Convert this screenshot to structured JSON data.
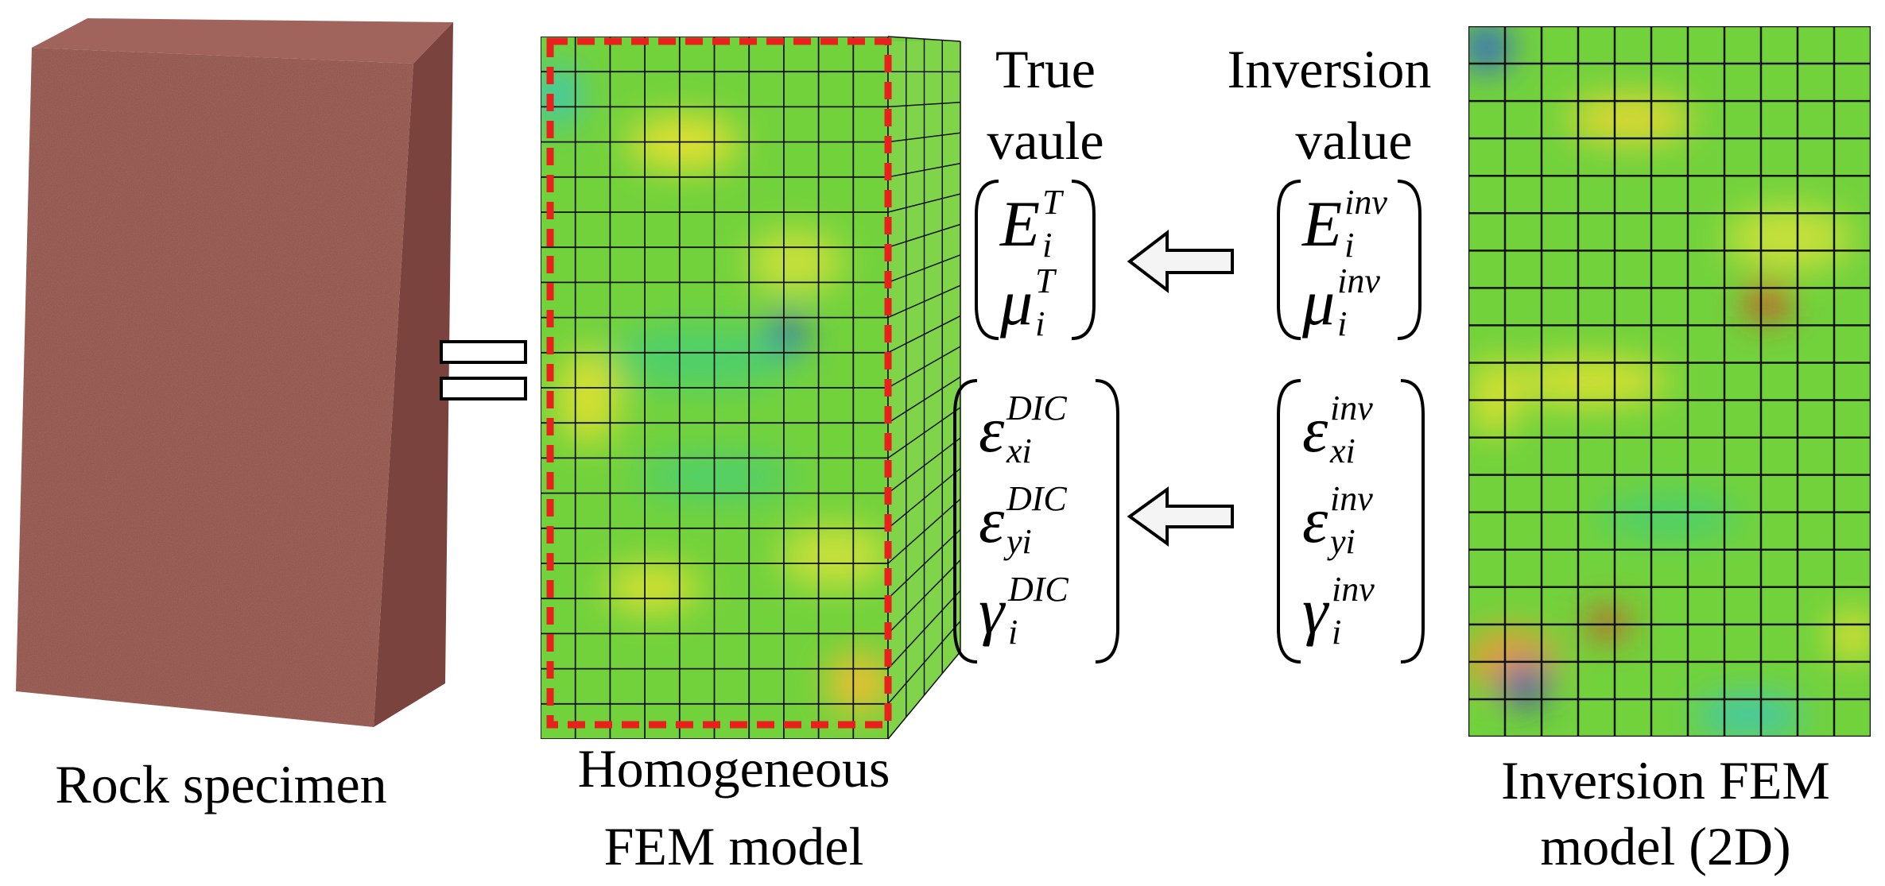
{
  "labels": {
    "rock_specimen": "Rock specimen",
    "homogeneous_model": [
      "Homogeneous",
      "FEM model"
    ],
    "true_value": [
      "True",
      "vaule"
    ],
    "inversion_value": [
      "Inversion",
      "value"
    ],
    "inversion_model": [
      "Inversion FEM",
      "model (2D)"
    ]
  },
  "true_params": [
    {
      "base": "E",
      "sub": "i",
      "sup": "T"
    },
    {
      "base": "μ",
      "sub": "i",
      "sup": "T"
    }
  ],
  "inversion_params": [
    {
      "base": "E",
      "sub": "i",
      "sup": "inv"
    },
    {
      "base": "μ",
      "sub": "i",
      "sup": "inv"
    }
  ],
  "dic_strains": [
    {
      "base": "ε",
      "sub": "xi",
      "sup": "DIC"
    },
    {
      "base": "ε",
      "sub": "yi",
      "sup": "DIC"
    },
    {
      "base": "γ",
      "sub": "i",
      "sup": "DIC"
    }
  ],
  "inversion_strains": [
    {
      "base": "ε",
      "sub": "xi",
      "sup": "inv"
    },
    {
      "base": "ε",
      "sub": "yi",
      "sup": "inv"
    },
    {
      "base": "γ",
      "sub": "i",
      "sup": "inv"
    }
  ]
}
